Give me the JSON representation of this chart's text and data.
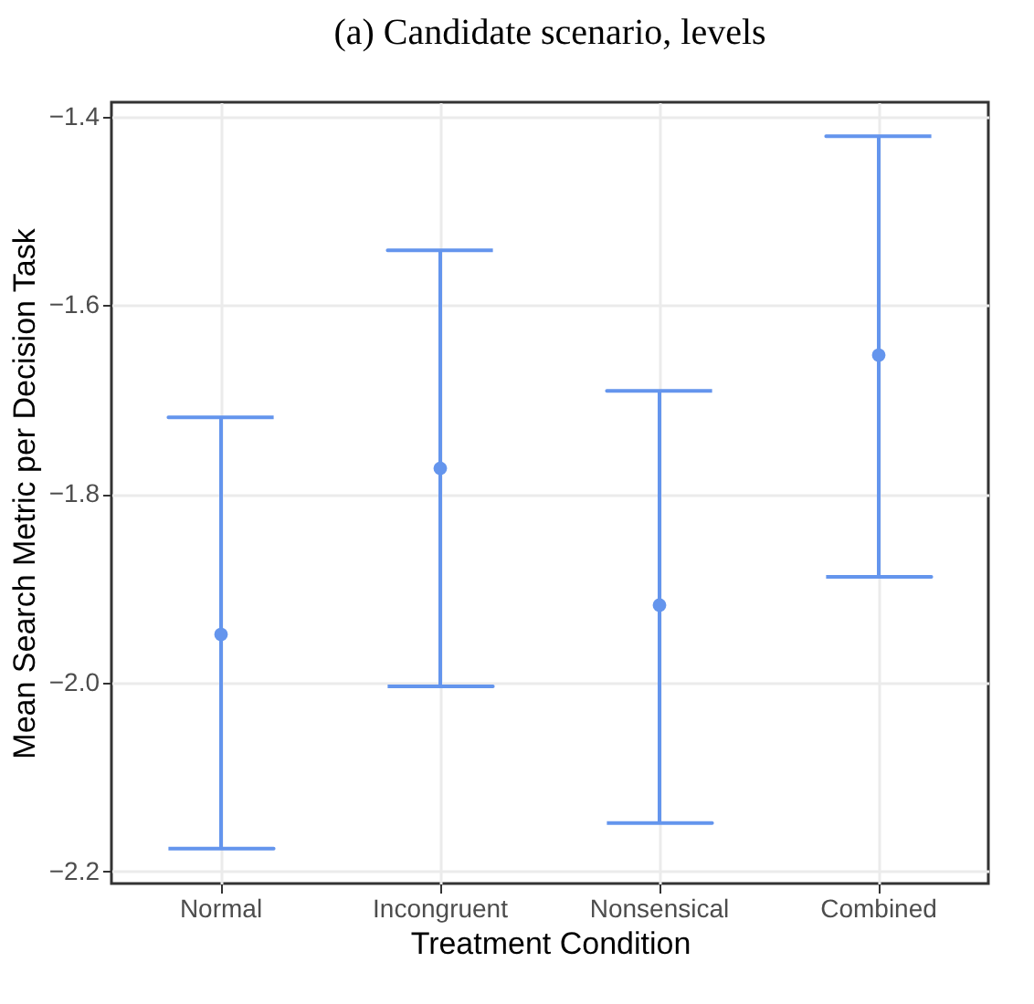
{
  "chart_data": {
    "type": "scatter",
    "title": "(a) Candidate scenario, levels",
    "xlabel": "Treatment Condition",
    "ylabel": "Mean Search Metric per Decision Task",
    "categories": [
      "Normal",
      "Incongruent",
      "Nonsensical",
      "Combined"
    ],
    "values": [
      -1.949,
      -1.773,
      -1.918,
      -1.653
    ],
    "errors": [
      [
        -2.176,
        -1.719
      ],
      [
        -2.004,
        -1.542
      ],
      [
        -2.149,
        -1.691
      ],
      [
        -1.888,
        -1.421
      ]
    ],
    "colors": [
      "#6495ed",
      "#6495ed",
      "#6495ed",
      "#6495ed"
    ],
    "ylim": [
      -2.213,
      -1.385
    ],
    "yticks": [
      {
        "value": -2.2,
        "label": "−2.2"
      },
      {
        "value": -2.0,
        "label": "−2.0"
      },
      {
        "value": -1.8,
        "label": "−1.8"
      },
      {
        "value": -1.6,
        "label": "−1.6"
      },
      {
        "value": -1.4,
        "label": "−1.4"
      }
    ],
    "grid": true,
    "marker": "circle"
  }
}
